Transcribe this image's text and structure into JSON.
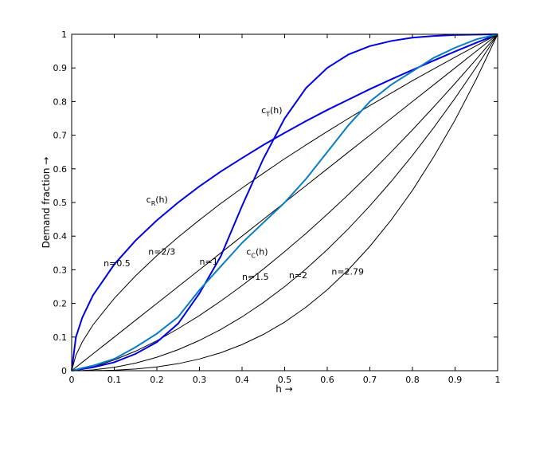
{
  "chart_data": {
    "type": "line",
    "xlabel": "h →",
    "ylabel": "Demand fraction →",
    "x": [
      0,
      0.01,
      0.025,
      0.05,
      0.1,
      0.15,
      0.2,
      0.25,
      0.3,
      0.35,
      0.4,
      0.45,
      0.5,
      0.55,
      0.6,
      0.65,
      0.7,
      0.75,
      0.8,
      0.85,
      0.9,
      0.95,
      1
    ],
    "xlim": [
      0,
      1
    ],
    "ylim": [
      0,
      1
    ],
    "xticks": [
      0,
      0.1,
      0.2,
      0.3,
      0.4,
      0.5,
      0.6,
      0.7,
      0.8,
      0.9,
      1
    ],
    "yticks": [
      0,
      0.1,
      0.2,
      0.3,
      0.4,
      0.5,
      0.6,
      0.7,
      0.8,
      0.9,
      1
    ],
    "series": [
      {
        "color": "#0000e0",
        "annotations": [
          "n=0.5",
          {
            "base": "c",
            "sub": "R",
            "tail": "(h)"
          }
        ],
        "values": [
          0,
          0.1,
          0.158,
          0.224,
          0.316,
          0.387,
          0.447,
          0.5,
          0.548,
          0.592,
          0.632,
          0.671,
          0.707,
          0.742,
          0.775,
          0.806,
          0.837,
          0.866,
          0.894,
          0.922,
          0.949,
          0.975,
          1
        ]
      },
      {
        "color": "#000000",
        "annotations": [
          "n=2/3"
        ],
        "values": [
          0,
          0.046,
          0.0855,
          0.136,
          0.215,
          0.282,
          0.342,
          0.397,
          0.448,
          0.497,
          0.543,
          0.587,
          0.63,
          0.671,
          0.711,
          0.75,
          0.788,
          0.825,
          0.862,
          0.897,
          0.932,
          0.966,
          1
        ]
      },
      {
        "color": "#000000",
        "annotations": [
          "n=1"
        ],
        "values": [
          0,
          0.01,
          0.025,
          0.05,
          0.1,
          0.15,
          0.2,
          0.25,
          0.3,
          0.35,
          0.4,
          0.45,
          0.5,
          0.55,
          0.6,
          0.65,
          0.7,
          0.75,
          0.8,
          0.85,
          0.9,
          0.95,
          1
        ]
      },
      {
        "color": "#000000",
        "annotations": [
          "n=1.5"
        ],
        "values": [
          0,
          0.001,
          0.004,
          0.011,
          0.032,
          0.058,
          0.089,
          0.125,
          0.164,
          0.207,
          0.253,
          0.302,
          0.354,
          0.408,
          0.465,
          0.524,
          0.586,
          0.65,
          0.716,
          0.784,
          0.854,
          0.926,
          1
        ]
      },
      {
        "color": "#000000",
        "annotations": [
          "n=2"
        ],
        "values": [
          0,
          0.0001,
          0.0006,
          0.0025,
          0.01,
          0.0225,
          0.04,
          0.0625,
          0.09,
          0.1225,
          0.16,
          0.2025,
          0.25,
          0.3025,
          0.36,
          0.4225,
          0.49,
          0.5625,
          0.64,
          0.7225,
          0.81,
          0.9025,
          1
        ]
      },
      {
        "color": "#000000",
        "annotations": [
          "n=2.79"
        ],
        "values": [
          0,
          0,
          0,
          0.0002,
          0.0016,
          0.005,
          0.0112,
          0.0209,
          0.0348,
          0.0534,
          0.0776,
          0.1078,
          0.1445,
          0.1887,
          0.2405,
          0.3007,
          0.3697,
          0.448,
          0.536,
          0.636,
          0.745,
          0.867,
          1
        ]
      },
      {
        "color": "#0000e0",
        "annotations": [
          {
            "base": "c",
            "sub": "T",
            "tail": "(h)"
          }
        ],
        "values": [
          0,
          0.002,
          0.005,
          0.01,
          0.025,
          0.05,
          0.085,
          0.14,
          0.23,
          0.34,
          0.49,
          0.63,
          0.75,
          0.84,
          0.9,
          0.94,
          0.965,
          0.98,
          0.99,
          0.995,
          0.998,
          0.999,
          1
        ]
      },
      {
        "color": "#0a7cc0",
        "annotations": [
          {
            "base": "c",
            "sub": "C",
            "tail": "(h)"
          }
        ],
        "values": [
          0,
          0.003,
          0.008,
          0.015,
          0.035,
          0.07,
          0.11,
          0.16,
          0.24,
          0.31,
          0.38,
          0.44,
          0.5,
          0.57,
          0.65,
          0.73,
          0.8,
          0.85,
          0.89,
          0.93,
          0.96,
          0.985,
          1
        ]
      }
    ]
  }
}
